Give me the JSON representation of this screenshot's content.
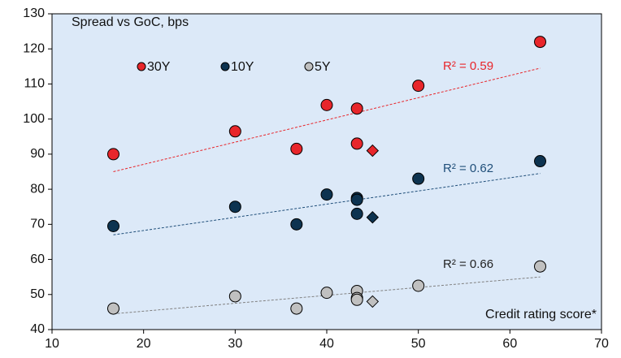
{
  "chart_data": {
    "type": "scatter",
    "title": "Spread vs GoC, bps",
    "x_label": "Credit rating score*",
    "xlim": [
      10,
      70
    ],
    "xticks": [
      10,
      20,
      30,
      40,
      50,
      60,
      70
    ],
    "ylim": [
      40,
      130
    ],
    "yticks": [
      40,
      50,
      60,
      70,
      80,
      90,
      100,
      110,
      120,
      130
    ],
    "background": "#dce9f8",
    "series": [
      {
        "name": "30Y",
        "color": "#e8262b",
        "trend_color": "#e8262b",
        "label_color": "#e8262b",
        "x": [
          16.7,
          30,
          36.7,
          40,
          43.3,
          43.3,
          50,
          63.3
        ],
        "values": [
          90,
          96.5,
          91.5,
          104,
          103,
          93,
          109.5,
          122
        ],
        "diamond": {
          "x": 45,
          "value": 91
        },
        "trend": {
          "x": [
            16.7,
            63.3
          ],
          "values": [
            85,
            114.5
          ]
        },
        "r2_label": "R² = 0.59"
      },
      {
        "name": "10Y",
        "color": "#0d3350",
        "trend_color": "#1f4e79",
        "label_color": "#1f4e79",
        "x": [
          16.7,
          30,
          36.7,
          40,
          43.3,
          43.3,
          43.3,
          50,
          63.3
        ],
        "values": [
          69.5,
          75,
          70,
          78.5,
          77.5,
          77,
          73,
          83,
          88
        ],
        "diamond": {
          "x": 45,
          "value": 72
        },
        "trend": {
          "x": [
            16.7,
            63.3
          ],
          "values": [
            67,
            84.5
          ]
        },
        "r2_label": "R² = 0.62"
      },
      {
        "name": "5Y",
        "color": "#c0c0c0",
        "trend_color": "#808080",
        "label_color": "#222222",
        "x": [
          16.7,
          30,
          36.7,
          40,
          43.3,
          43.3,
          43.3,
          50,
          63.3
        ],
        "values": [
          46,
          49.5,
          46,
          50.5,
          51,
          49,
          48.5,
          52.5,
          58
        ],
        "diamond": {
          "x": 45,
          "value": 48
        },
        "trend": {
          "x": [
            16.7,
            63.3
          ],
          "values": [
            44.5,
            55
          ]
        },
        "r2_label": "R² = 0.66"
      }
    ]
  }
}
